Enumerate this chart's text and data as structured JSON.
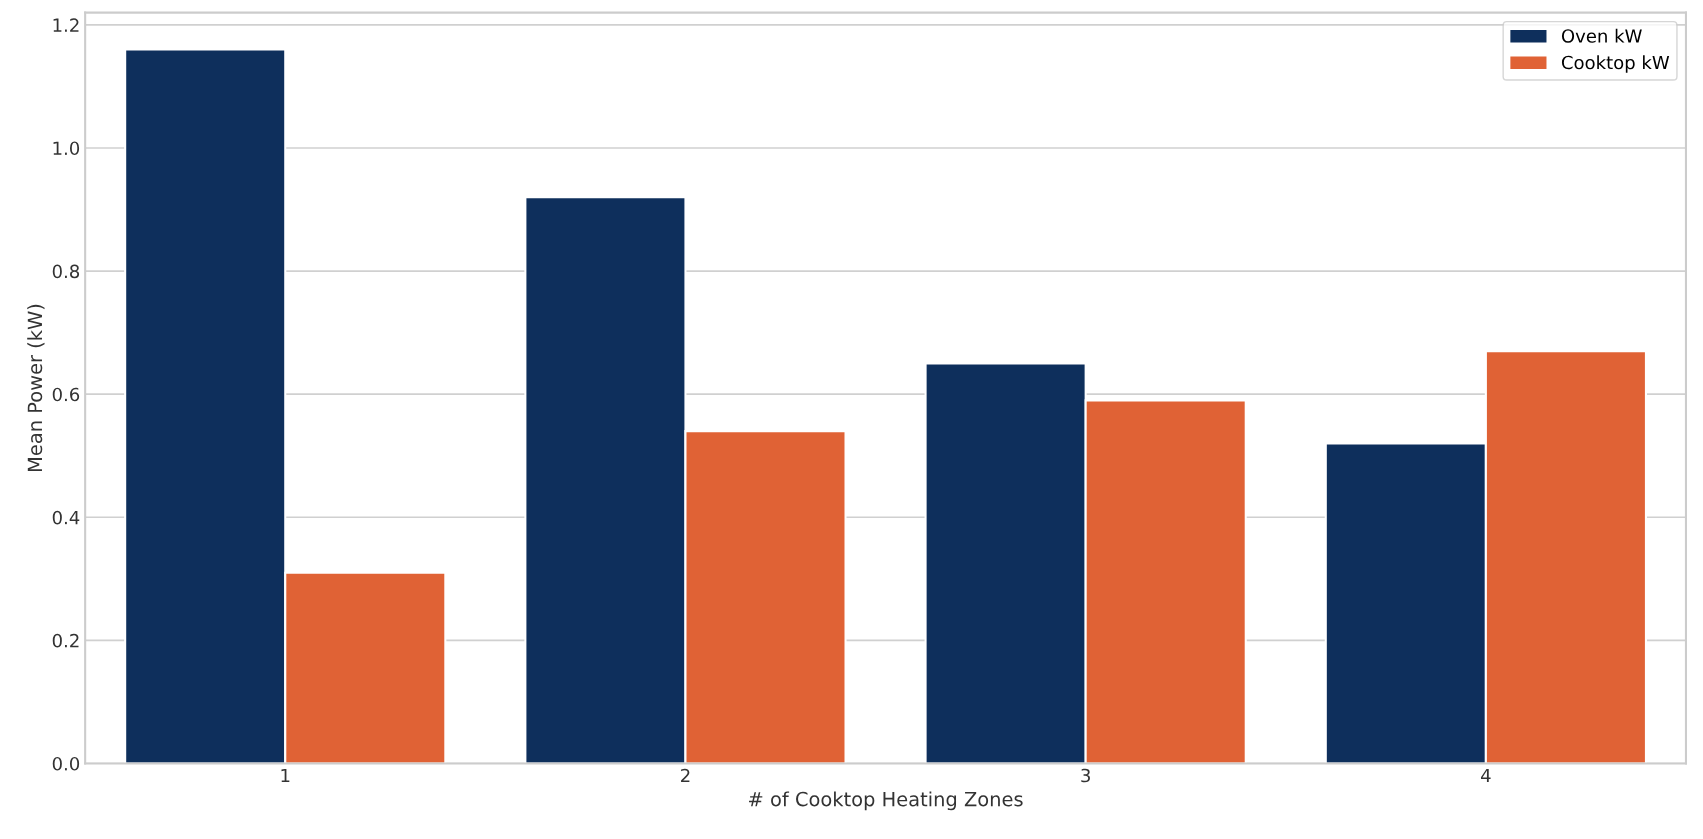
{
  "chart_data": {
    "type": "bar",
    "xlabel": "# of Cooktop Heating Zones",
    "ylabel": "Mean Power (kW)",
    "categories": [
      "1",
      "2",
      "3",
      "4"
    ],
    "series": [
      {
        "name": "Oven kW",
        "color": "#0e2f5c",
        "values": [
          1.16,
          0.92,
          0.65,
          0.52
        ]
      },
      {
        "name": "Cooktop kW",
        "color": "#e06235",
        "values": [
          0.31,
          0.54,
          0.59,
          0.67
        ]
      }
    ],
    "ylim": [
      0,
      1.22
    ],
    "yticks": [
      {
        "value": 0,
        "label": "0.0"
      },
      0.2,
      0.4,
      0.6,
      0.8,
      {
        "value": 1,
        "label": "1.0"
      },
      1.2
    ],
    "grid": "y",
    "legend": "top right"
  }
}
